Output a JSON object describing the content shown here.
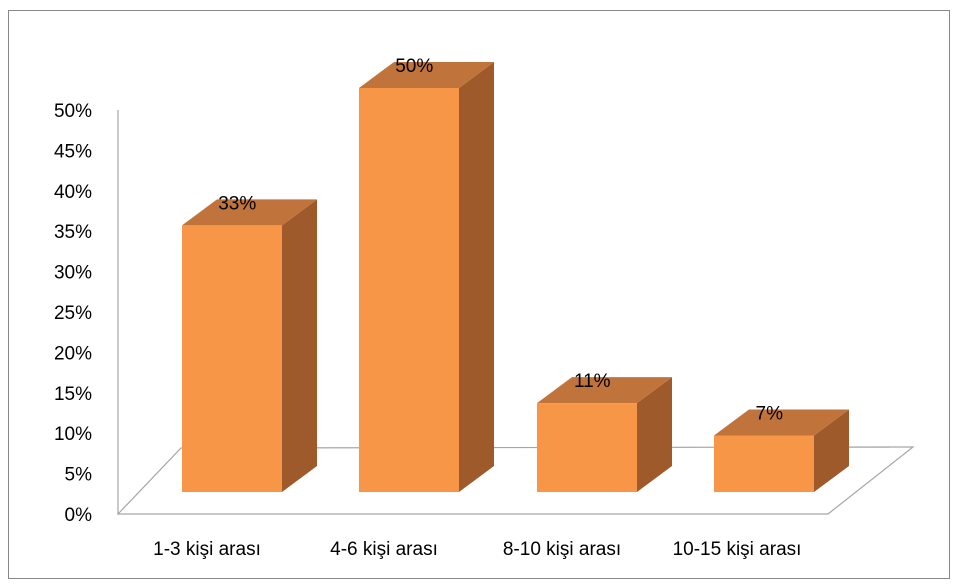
{
  "chart_data": {
    "type": "bar",
    "style": "3d-column",
    "title": "",
    "xlabel": "",
    "ylabel": "",
    "categories": [
      "1-3 kişi arası",
      "4-6 kişi arası",
      "8-10 kişi arası",
      "10-15 kişi arası"
    ],
    "values": [
      33,
      50,
      11,
      7
    ],
    "data_labels": [
      "33%",
      "50%",
      "11%",
      "7%"
    ],
    "ylim": [
      0,
      50
    ],
    "y_ticks": [
      0,
      5,
      10,
      15,
      20,
      25,
      30,
      35,
      40,
      45,
      50
    ],
    "y_tick_labels": [
      "0%",
      "5%",
      "10%",
      "15%",
      "20%",
      "25%",
      "30%",
      "35%",
      "40%",
      "45%",
      "50%"
    ],
    "grid": false,
    "legend": "none",
    "colors": {
      "bar_front": "#F79646",
      "bar_top": "#C0733A",
      "bar_side": "#9E5A2A",
      "axis": "#A6A6A6",
      "border": "#888888"
    }
  }
}
